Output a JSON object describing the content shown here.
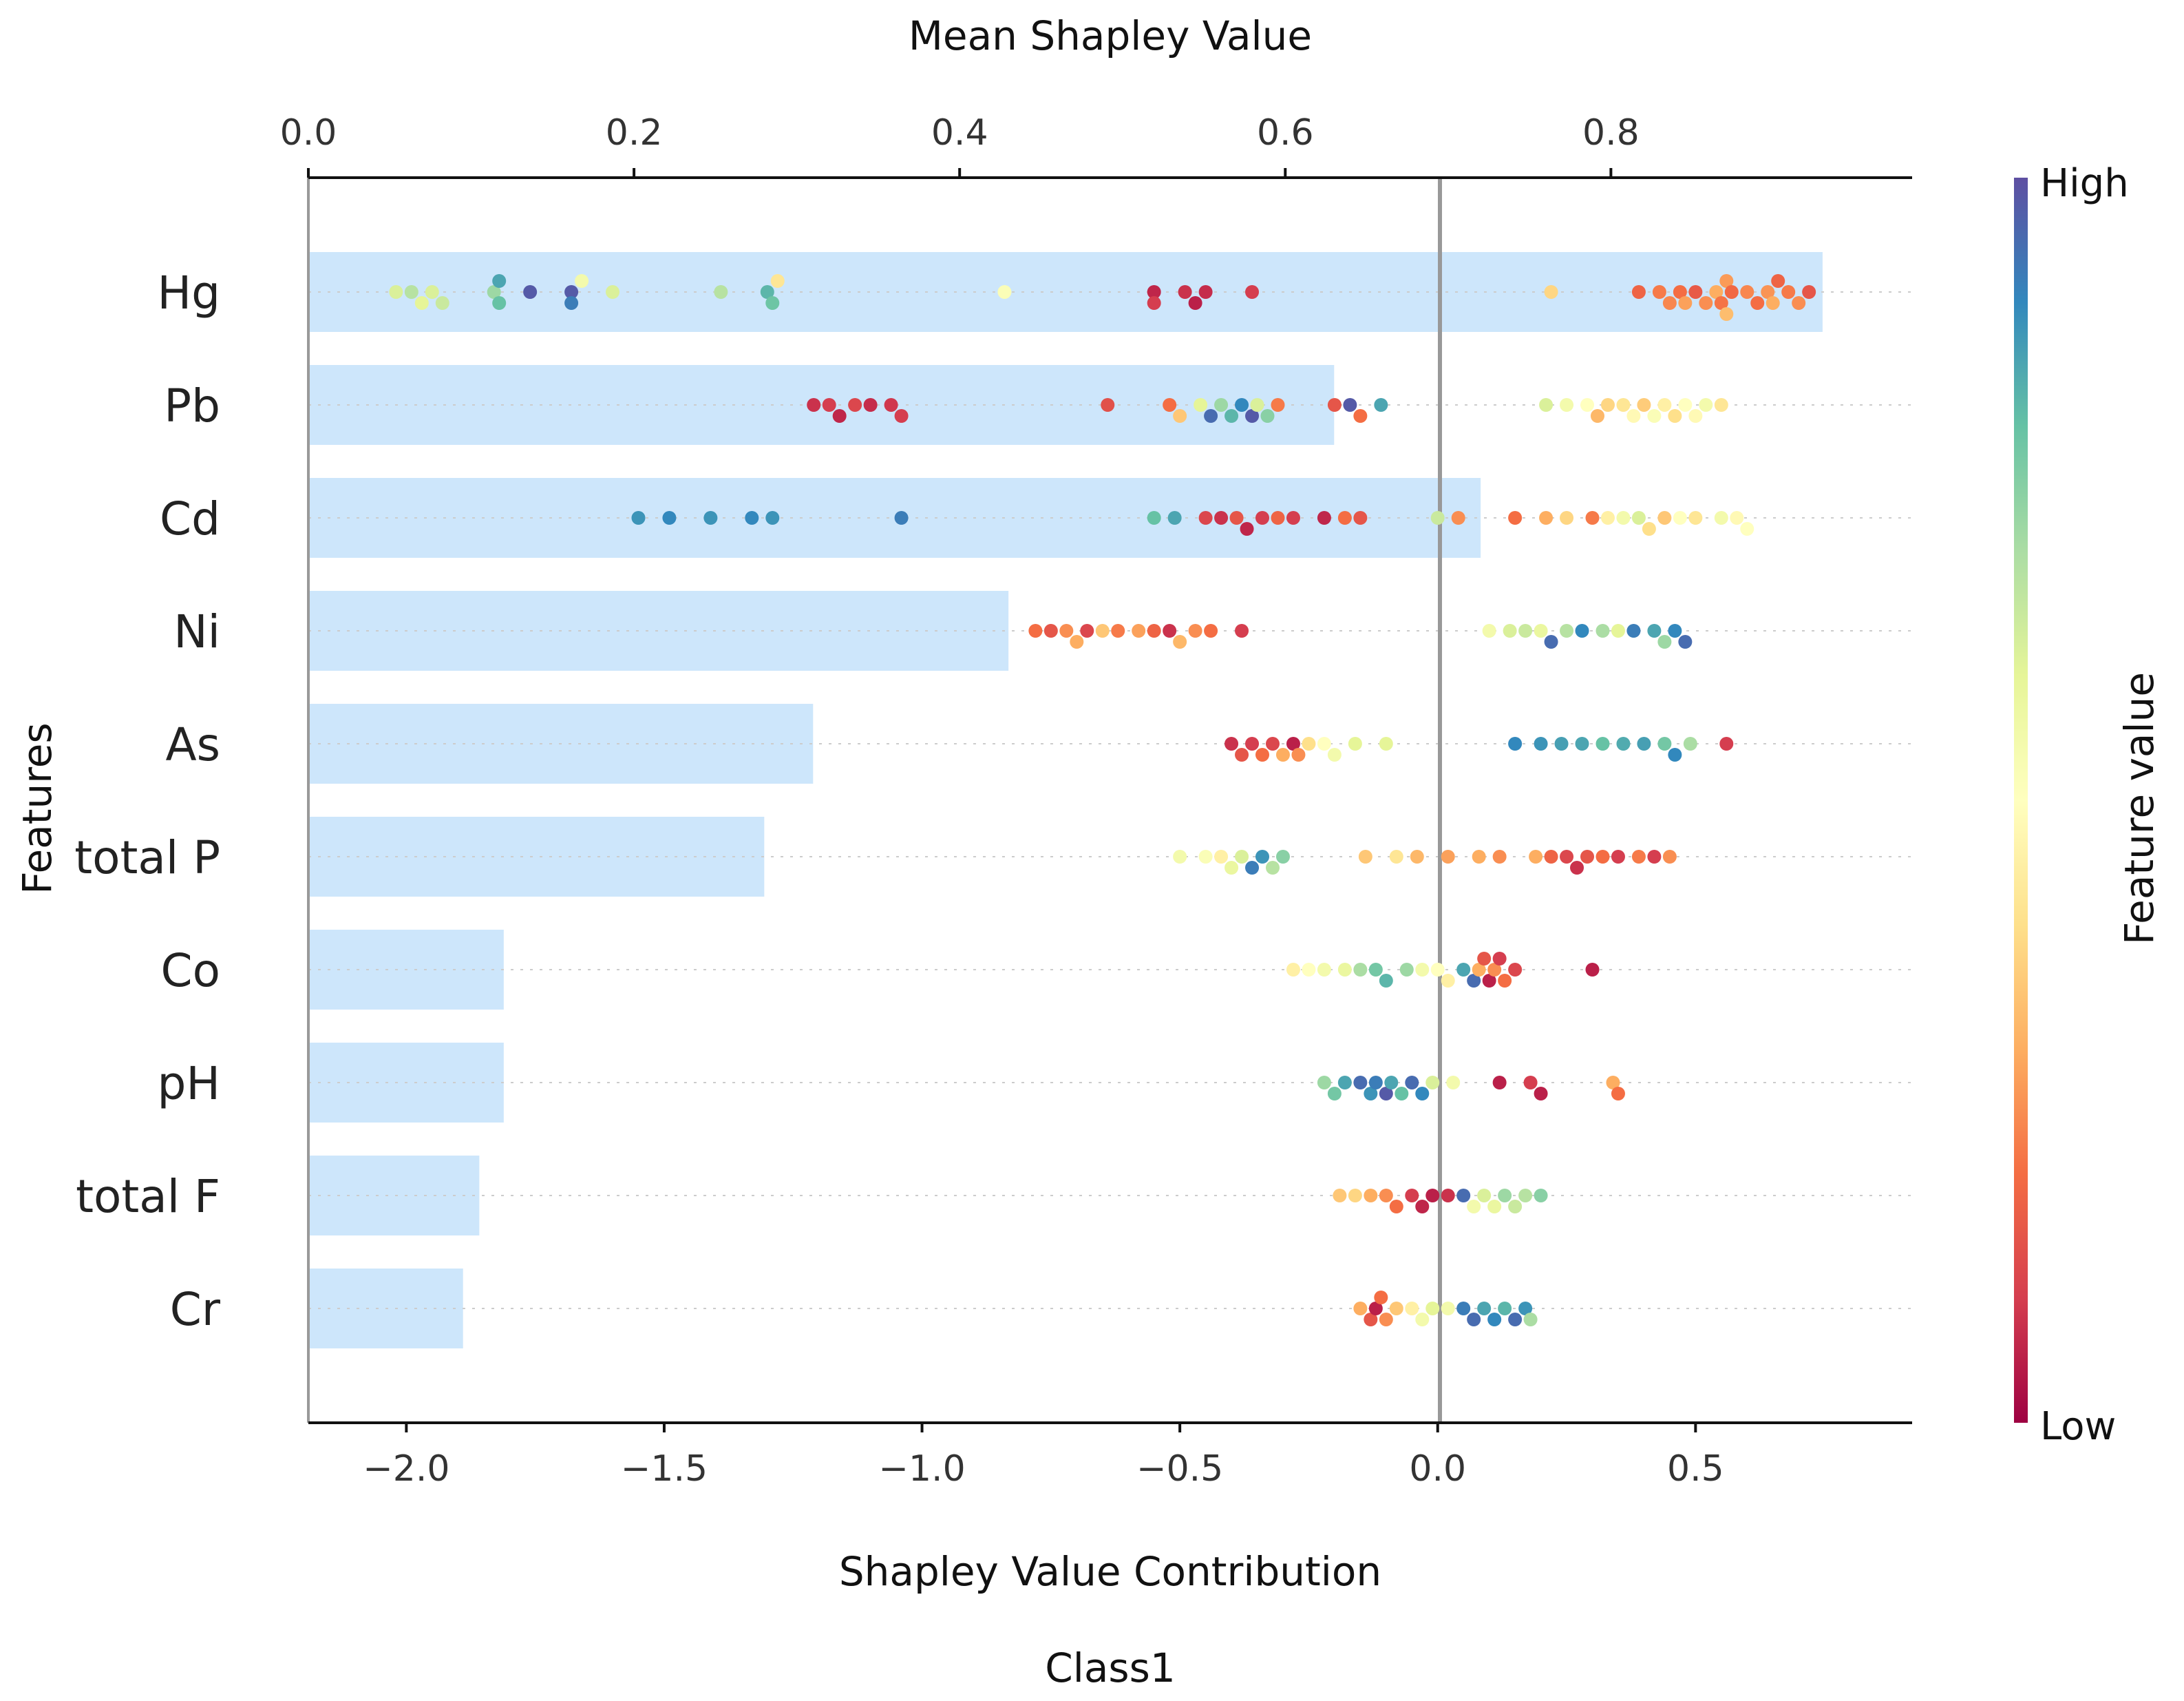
{
  "chart_data": {
    "type": "scatter",
    "subtype": "shap-summary-beeswarm-with-mean-bars",
    "title": "",
    "top_axis": {
      "label": "Mean Shapley Value",
      "ticks": [
        "0.0",
        "0.2",
        "0.4",
        "0.6",
        "0.8"
      ],
      "tick_values": [
        0,
        0.2,
        0.4,
        0.6,
        0.8
      ],
      "range": [
        0,
        0.985
      ]
    },
    "bottom_axis": {
      "label": "Shapley Value Contribution",
      "ticks": [
        "−2.0",
        "−1.5",
        "−1.0",
        "−0.5",
        "0.0",
        "0.5"
      ],
      "tick_values": [
        -2.0,
        -1.5,
        -1.0,
        -0.5,
        0.0,
        0.5
      ],
      "range": [
        -2.19,
        0.92
      ]
    },
    "ylabel": "Features",
    "class_label": "Class1",
    "colorbar": {
      "label": "Feature value",
      "high": "High",
      "low": "Low",
      "colormap": "Spectral"
    },
    "bar_color": "#cde6fb",
    "zero_line_color": "#999999",
    "features": [
      {
        "name": "Hg",
        "mean_shap": 0.93,
        "points": [
          [
            -2.02,
            0.62
          ],
          [
            -1.99,
            0.68
          ],
          [
            -1.97,
            0.6
          ],
          [
            -1.95,
            0.62
          ],
          [
            -1.93,
            0.65
          ],
          [
            -1.83,
            0.72
          ],
          [
            -1.82,
            0.8
          ],
          [
            -1.82,
            0.85
          ],
          [
            -1.76,
            0.98
          ],
          [
            -1.68,
            0.98
          ],
          [
            -1.68,
            0.92
          ],
          [
            -1.66,
            0.55
          ],
          [
            -1.6,
            0.62
          ],
          [
            -1.39,
            0.68
          ],
          [
            -1.3,
            0.82
          ],
          [
            -1.29,
            0.79
          ],
          [
            -1.28,
            0.42
          ],
          [
            -0.84,
            0.52
          ],
          [
            -0.55,
            0.06
          ],
          [
            -0.55,
            0.1
          ],
          [
            -0.49,
            0.08
          ],
          [
            -0.47,
            0.05
          ],
          [
            -0.45,
            0.07
          ],
          [
            -0.36,
            0.1
          ],
          [
            0.22,
            0.38
          ],
          [
            0.39,
            0.18
          ],
          [
            0.43,
            0.22
          ],
          [
            0.45,
            0.24
          ],
          [
            0.47,
            0.2
          ],
          [
            0.48,
            0.28
          ],
          [
            0.5,
            0.16
          ],
          [
            0.52,
            0.25
          ],
          [
            0.54,
            0.3
          ],
          [
            0.55,
            0.21
          ],
          [
            0.56,
            0.27
          ],
          [
            0.56,
            0.33
          ],
          [
            0.57,
            0.19
          ],
          [
            0.6,
            0.24
          ],
          [
            0.62,
            0.2
          ],
          [
            0.64,
            0.26
          ],
          [
            0.65,
            0.3
          ],
          [
            0.66,
            0.18
          ],
          [
            0.68,
            0.22
          ],
          [
            0.7,
            0.25
          ],
          [
            0.72,
            0.15
          ]
        ]
      },
      {
        "name": "Pb",
        "mean_shap": 0.63,
        "points": [
          [
            -1.21,
            0.08
          ],
          [
            -1.18,
            0.1
          ],
          [
            -1.16,
            0.06
          ],
          [
            -1.13,
            0.12
          ],
          [
            -1.1,
            0.07
          ],
          [
            -1.06,
            0.09
          ],
          [
            -1.04,
            0.1
          ],
          [
            -0.64,
            0.14
          ],
          [
            -0.52,
            0.2
          ],
          [
            -0.5,
            0.35
          ],
          [
            -0.46,
            0.6
          ],
          [
            -0.44,
            0.95
          ],
          [
            -0.42,
            0.72
          ],
          [
            -0.4,
            0.82
          ],
          [
            -0.38,
            0.9
          ],
          [
            -0.36,
            0.98
          ],
          [
            -0.35,
            0.62
          ],
          [
            -0.33,
            0.75
          ],
          [
            -0.31,
            0.22
          ],
          [
            -0.2,
            0.15
          ],
          [
            -0.17,
            0.98
          ],
          [
            -0.15,
            0.2
          ],
          [
            -0.11,
            0.85
          ],
          [
            0.21,
            0.62
          ],
          [
            0.25,
            0.55
          ],
          [
            0.29,
            0.5
          ],
          [
            0.31,
            0.32
          ],
          [
            0.33,
            0.38
          ],
          [
            0.36,
            0.42
          ],
          [
            0.38,
            0.48
          ],
          [
            0.4,
            0.36
          ],
          [
            0.42,
            0.52
          ],
          [
            0.44,
            0.45
          ],
          [
            0.46,
            0.4
          ],
          [
            0.48,
            0.5
          ],
          [
            0.5,
            0.48
          ],
          [
            0.52,
            0.55
          ],
          [
            0.55,
            0.42
          ]
        ]
      },
      {
        "name": "Cd",
        "mean_shap": 0.72,
        "points": [
          [
            -1.55,
            0.88
          ],
          [
            -1.49,
            0.9
          ],
          [
            -1.41,
            0.88
          ],
          [
            -1.33,
            0.9
          ],
          [
            -1.29,
            0.88
          ],
          [
            -1.04,
            0.92
          ],
          [
            -0.55,
            0.8
          ],
          [
            -0.51,
            0.85
          ],
          [
            -0.45,
            0.12
          ],
          [
            -0.42,
            0.08
          ],
          [
            -0.39,
            0.15
          ],
          [
            -0.37,
            0.06
          ],
          [
            -0.34,
            0.1
          ],
          [
            -0.31,
            0.18
          ],
          [
            -0.28,
            0.1
          ],
          [
            -0.22,
            0.06
          ],
          [
            -0.18,
            0.2
          ],
          [
            -0.15,
            0.15
          ],
          [
            0.0,
            0.65
          ],
          [
            0.04,
            0.25
          ],
          [
            0.15,
            0.2
          ],
          [
            0.21,
            0.3
          ],
          [
            0.25,
            0.38
          ],
          [
            0.3,
            0.22
          ],
          [
            0.33,
            0.45
          ],
          [
            0.36,
            0.55
          ],
          [
            0.39,
            0.62
          ],
          [
            0.41,
            0.4
          ],
          [
            0.44,
            0.35
          ],
          [
            0.47,
            0.5
          ],
          [
            0.5,
            0.42
          ],
          [
            0.55,
            0.55
          ],
          [
            0.58,
            0.48
          ],
          [
            0.6,
            0.5
          ]
        ]
      },
      {
        "name": "Ni",
        "mean_shap": 0.43,
        "points": [
          [
            -0.78,
            0.2
          ],
          [
            -0.75,
            0.15
          ],
          [
            -0.72,
            0.25
          ],
          [
            -0.7,
            0.3
          ],
          [
            -0.68,
            0.12
          ],
          [
            -0.65,
            0.35
          ],
          [
            -0.62,
            0.22
          ],
          [
            -0.58,
            0.28
          ],
          [
            -0.55,
            0.18
          ],
          [
            -0.52,
            0.08
          ],
          [
            -0.5,
            0.32
          ],
          [
            -0.47,
            0.25
          ],
          [
            -0.44,
            0.2
          ],
          [
            -0.38,
            0.1
          ],
          [
            0.1,
            0.55
          ],
          [
            0.14,
            0.62
          ],
          [
            0.17,
            0.65
          ],
          [
            0.2,
            0.58
          ],
          [
            0.22,
            0.95
          ],
          [
            0.25,
            0.68
          ],
          [
            0.28,
            0.9
          ],
          [
            0.32,
            0.7
          ],
          [
            0.35,
            0.6
          ],
          [
            0.38,
            0.92
          ],
          [
            0.42,
            0.85
          ],
          [
            0.44,
            0.72
          ],
          [
            0.46,
            0.9
          ],
          [
            0.48,
            0.95
          ]
        ]
      },
      {
        "name": "As",
        "mean_shap": 0.31,
        "points": [
          [
            -0.4,
            0.08
          ],
          [
            -0.38,
            0.15
          ],
          [
            -0.36,
            0.1
          ],
          [
            -0.34,
            0.2
          ],
          [
            -0.32,
            0.12
          ],
          [
            -0.3,
            0.3
          ],
          [
            -0.28,
            0.05
          ],
          [
            -0.27,
            0.25
          ],
          [
            -0.25,
            0.4
          ],
          [
            -0.22,
            0.5
          ],
          [
            -0.2,
            0.55
          ],
          [
            -0.16,
            0.6
          ],
          [
            -0.1,
            0.6
          ],
          [
            0.15,
            0.9
          ],
          [
            0.2,
            0.88
          ],
          [
            0.24,
            0.86
          ],
          [
            0.28,
            0.85
          ],
          [
            0.32,
            0.8
          ],
          [
            0.36,
            0.84
          ],
          [
            0.4,
            0.86
          ],
          [
            0.44,
            0.78
          ],
          [
            0.46,
            0.9
          ],
          [
            0.49,
            0.7
          ],
          [
            0.56,
            0.1
          ]
        ]
      },
      {
        "name": "total P",
        "mean_shap": 0.28,
        "points": [
          [
            -0.5,
            0.55
          ],
          [
            -0.45,
            0.52
          ],
          [
            -0.42,
            0.45
          ],
          [
            -0.4,
            0.58
          ],
          [
            -0.38,
            0.62
          ],
          [
            -0.36,
            0.92
          ],
          [
            -0.34,
            0.88
          ],
          [
            -0.32,
            0.68
          ],
          [
            -0.3,
            0.75
          ],
          [
            -0.14,
            0.35
          ],
          [
            -0.08,
            0.42
          ],
          [
            -0.04,
            0.32
          ],
          [
            0.02,
            0.28
          ],
          [
            0.08,
            0.3
          ],
          [
            0.12,
            0.25
          ],
          [
            0.19,
            0.3
          ],
          [
            0.22,
            0.18
          ],
          [
            0.25,
            0.12
          ],
          [
            0.27,
            0.08
          ],
          [
            0.29,
            0.15
          ],
          [
            0.32,
            0.2
          ],
          [
            0.35,
            0.1
          ],
          [
            0.39,
            0.22
          ],
          [
            0.42,
            0.1
          ],
          [
            0.45,
            0.25
          ]
        ]
      },
      {
        "name": "Co",
        "mean_shap": 0.12,
        "points": [
          [
            -0.28,
            0.45
          ],
          [
            -0.25,
            0.5
          ],
          [
            -0.22,
            0.55
          ],
          [
            -0.18,
            0.58
          ],
          [
            -0.15,
            0.7
          ],
          [
            -0.12,
            0.78
          ],
          [
            -0.1,
            0.82
          ],
          [
            -0.06,
            0.72
          ],
          [
            -0.03,
            0.55
          ],
          [
            0.0,
            0.5
          ],
          [
            0.02,
            0.45
          ],
          [
            0.05,
            0.85
          ],
          [
            0.07,
            0.95
          ],
          [
            0.08,
            0.3
          ],
          [
            0.09,
            0.15
          ],
          [
            0.1,
            0.05
          ],
          [
            0.11,
            0.25
          ],
          [
            0.12,
            0.1
          ],
          [
            0.13,
            0.2
          ],
          [
            0.15,
            0.12
          ],
          [
            0.3,
            0.05
          ]
        ]
      },
      {
        "name": "pH",
        "mean_shap": 0.12,
        "points": [
          [
            -0.22,
            0.72
          ],
          [
            -0.2,
            0.78
          ],
          [
            -0.18,
            0.85
          ],
          [
            -0.15,
            0.95
          ],
          [
            -0.13,
            0.88
          ],
          [
            -0.12,
            0.92
          ],
          [
            -0.1,
            0.98
          ],
          [
            -0.09,
            0.85
          ],
          [
            -0.07,
            0.8
          ],
          [
            -0.05,
            0.95
          ],
          [
            -0.03,
            0.9
          ],
          [
            -0.01,
            0.62
          ],
          [
            0.03,
            0.55
          ],
          [
            0.12,
            0.05
          ],
          [
            0.18,
            0.1
          ],
          [
            0.2,
            0.05
          ],
          [
            0.34,
            0.3
          ],
          [
            0.35,
            0.2
          ]
        ]
      },
      {
        "name": "total F",
        "mean_shap": 0.105,
        "points": [
          [
            -0.19,
            0.35
          ],
          [
            -0.16,
            0.38
          ],
          [
            -0.13,
            0.3
          ],
          [
            -0.1,
            0.25
          ],
          [
            -0.08,
            0.2
          ],
          [
            -0.05,
            0.1
          ],
          [
            -0.03,
            0.06
          ],
          [
            -0.01,
            0.05
          ],
          [
            0.02,
            0.08
          ],
          [
            0.05,
            0.95
          ],
          [
            0.07,
            0.55
          ],
          [
            0.09,
            0.62
          ],
          [
            0.11,
            0.58
          ],
          [
            0.13,
            0.72
          ],
          [
            0.15,
            0.65
          ],
          [
            0.17,
            0.68
          ],
          [
            0.2,
            0.75
          ]
        ]
      },
      {
        "name": "Cr",
        "mean_shap": 0.095,
        "points": [
          [
            -0.15,
            0.3
          ],
          [
            -0.13,
            0.15
          ],
          [
            -0.12,
            0.05
          ],
          [
            -0.11,
            0.2
          ],
          [
            -0.1,
            0.25
          ],
          [
            -0.08,
            0.35
          ],
          [
            -0.05,
            0.45
          ],
          [
            -0.03,
            0.55
          ],
          [
            -0.01,
            0.6
          ],
          [
            0.02,
            0.55
          ],
          [
            0.05,
            0.92
          ],
          [
            0.07,
            0.95
          ],
          [
            0.09,
            0.85
          ],
          [
            0.11,
            0.9
          ],
          [
            0.13,
            0.82
          ],
          [
            0.15,
            0.95
          ],
          [
            0.17,
            0.88
          ],
          [
            0.18,
            0.7
          ]
        ]
      }
    ]
  }
}
